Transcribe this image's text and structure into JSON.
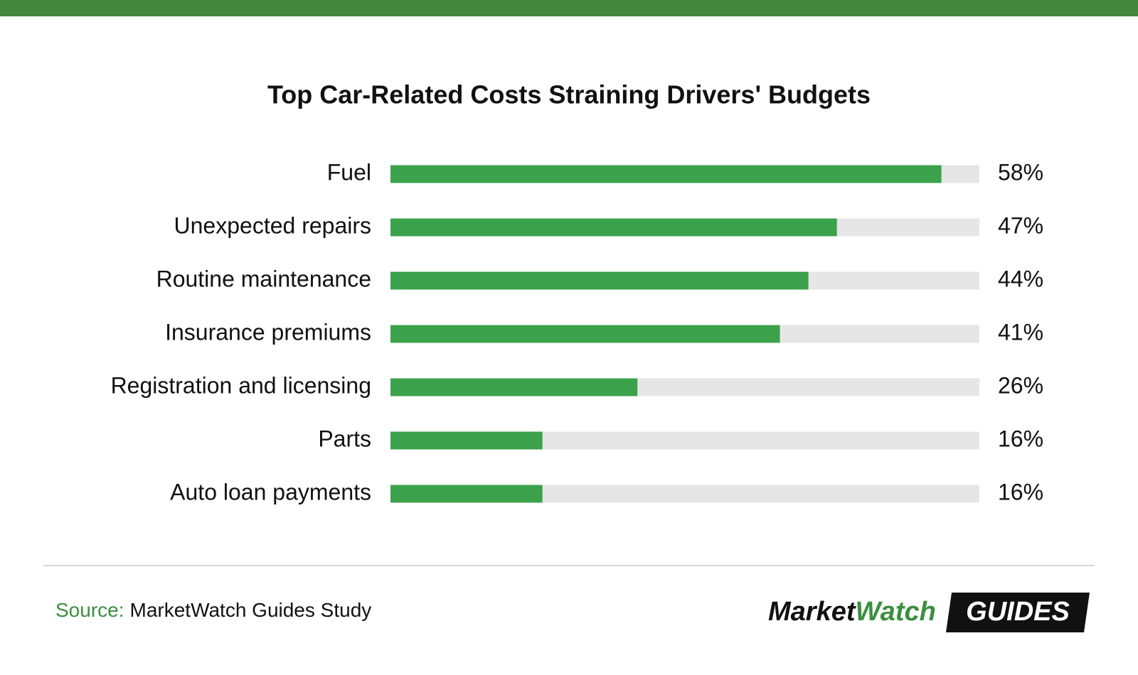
{
  "chart_data": {
    "type": "bar",
    "orientation": "horizontal",
    "title": "Top Car-Related Costs Straining Drivers' Budgets",
    "categories": [
      "Fuel",
      "Unexpected repairs",
      "Routine maintenance",
      "Insurance premiums",
      "Registration and licensing",
      "Parts",
      "Auto loan payments"
    ],
    "values": [
      58,
      47,
      44,
      41,
      26,
      16,
      16
    ],
    "value_labels": [
      "58%",
      "47%",
      "44%",
      "41%",
      "26%",
      "16%",
      "16%"
    ],
    "color": "#3ba24b",
    "track_color": "#e6e6e6",
    "xlim": [
      0,
      62
    ]
  },
  "footer": {
    "source_label": "Source:",
    "source": "MarketWatch Guides Study",
    "logo": {
      "market": "Market",
      "watch": "Watch",
      "guides": "GUIDES"
    }
  }
}
